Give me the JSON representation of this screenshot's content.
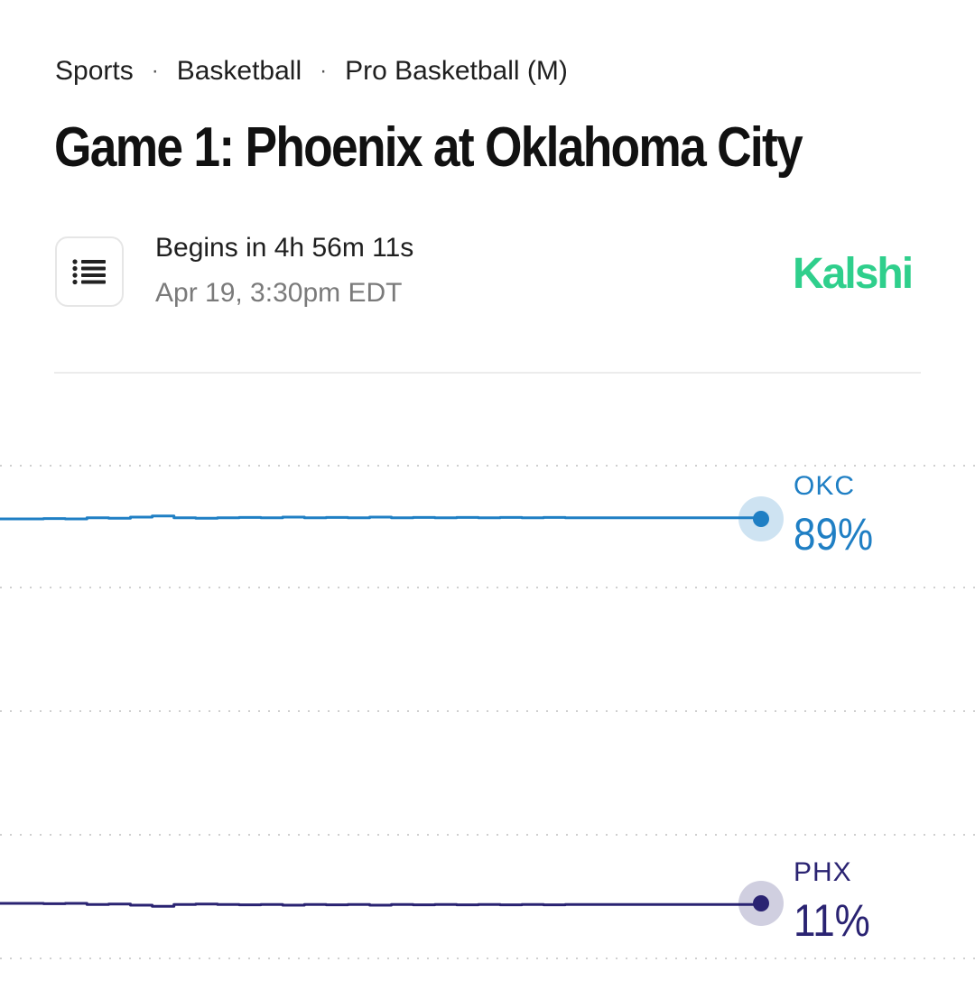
{
  "breadcrumb": {
    "items": [
      "Sports",
      "Basketball",
      "Pro Basketball (M)"
    ],
    "separator": "·"
  },
  "title": "Game 1: Phoenix at Oklahoma City",
  "event": {
    "status": "Begins in 4h 56m 11s",
    "date": "Apr 19, 3:30pm EDT",
    "rules_icon": "list-icon"
  },
  "brand": {
    "name": "Kalshi",
    "color": "#2fcf8c"
  },
  "chart_data": {
    "type": "line",
    "grid": "dotted horizontal",
    "ylim": [
      0,
      100
    ],
    "series": [
      {
        "name": "OKC",
        "label_value": "89%",
        "color": "#1f7fc4",
        "values": [
          89,
          89,
          89.1,
          89,
          89.3,
          89.2,
          89.5,
          89.8,
          89.3,
          89.2,
          89.3,
          89.4,
          89.3,
          89.5,
          89.3,
          89.4,
          89.3,
          89.5,
          89.3,
          89.4,
          89.3,
          89.4,
          89.3,
          89.4,
          89.3,
          89.4,
          89.3,
          89.3,
          89.3,
          89.3,
          89.3,
          89.3,
          89.3,
          89.3,
          89.3,
          89
        ]
      },
      {
        "name": "PHX",
        "label_value": "11%",
        "color": "#2a2372",
        "values": [
          11,
          11,
          10.9,
          11,
          10.7,
          10.8,
          10.5,
          10.2,
          10.7,
          10.8,
          10.7,
          10.6,
          10.7,
          10.5,
          10.7,
          10.6,
          10.7,
          10.5,
          10.7,
          10.6,
          10.7,
          10.6,
          10.7,
          10.6,
          10.7,
          10.6,
          10.7,
          10.7,
          10.7,
          10.7,
          10.7,
          10.7,
          10.7,
          10.7,
          10.7,
          11
        ]
      }
    ]
  }
}
